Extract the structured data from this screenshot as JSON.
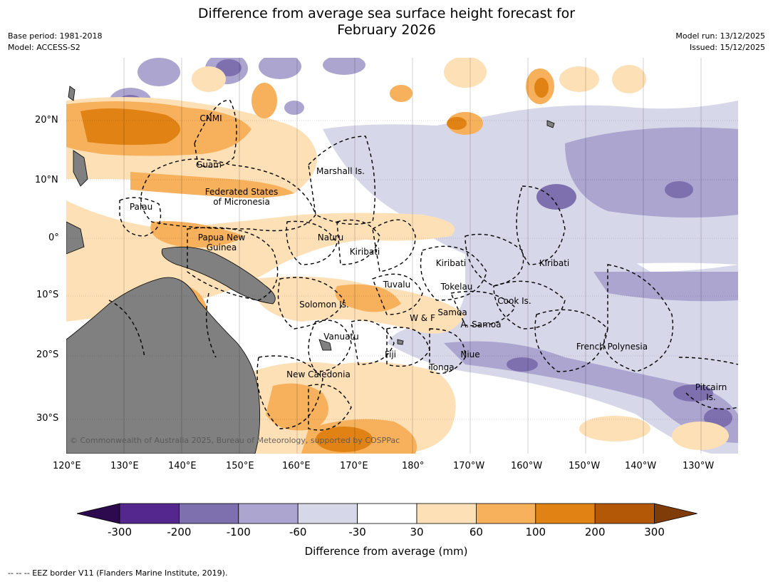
{
  "title": {
    "line1": "Difference from average sea surface height forecast for",
    "line2": "February 2026"
  },
  "meta": {
    "base_period": "Base period: 1981-2018",
    "model": "Model: ACCESS-S2",
    "model_run": "Model run: 13/12/2025",
    "issued": "Issued: 15/12/2025"
  },
  "map": {
    "copyright": "© Commonwealth of Australia 2025, Bureau of Meteorology, supported by COSPPac",
    "lat_labels": [
      "20°N",
      "10°N",
      "0°",
      "10°S",
      "20°S",
      "30°S"
    ],
    "lon_labels": [
      "120°E",
      "130°E",
      "140°E",
      "150°E",
      "160°E",
      "170°E",
      "180°",
      "170°W",
      "160°W",
      "150°W",
      "140°W",
      "130°W"
    ],
    "places": {
      "cnmi": "CNMI",
      "guam": "Guam",
      "marshall": "Marshall Is.",
      "fsm1": "Federated States",
      "fsm2": "of Micronesia",
      "palau": "Palau",
      "png1": "Papua New",
      "png2": "Guinea",
      "nauru": "Nauru",
      "kiribati_w": "Kiribati",
      "kiribati_c": "Kiribati",
      "kiribati_e": "Kiribati",
      "tuvalu": "Tuvalu",
      "tokelau": "Tokelau",
      "solomon": "Solomon Is.",
      "cook": "Cook Is.",
      "samoa": "Samoa",
      "wf": "W & F",
      "asamoa": "A. Samoa",
      "vanuatu": "Vanuatu",
      "fiji": "Fiji",
      "niue": "Niue",
      "tonga": "Tonga",
      "fpoly": "French Polynesia",
      "newcal": "New Caledonia",
      "pitcairn1": "Pitcairn",
      "pitcairn2": "Is."
    }
  },
  "colorbar": {
    "tick_labels": [
      "-300",
      "-200",
      "-100",
      "-60",
      "-30",
      "30",
      "60",
      "100",
      "200",
      "300"
    ],
    "colors": [
      "#2d0a4e",
      "#54278f",
      "#7e6fae",
      "#aba5cf",
      "#d7d7ea",
      "#ffffff",
      "#fee0b6",
      "#f7b05c",
      "#e08214",
      "#b35806",
      "#7f3b08"
    ],
    "label": "Difference from average (mm)"
  },
  "legend_footer": "--  --  -- EEZ border V11 (Flanders Marine Institute, 2019).",
  "land_color": "#808080"
}
